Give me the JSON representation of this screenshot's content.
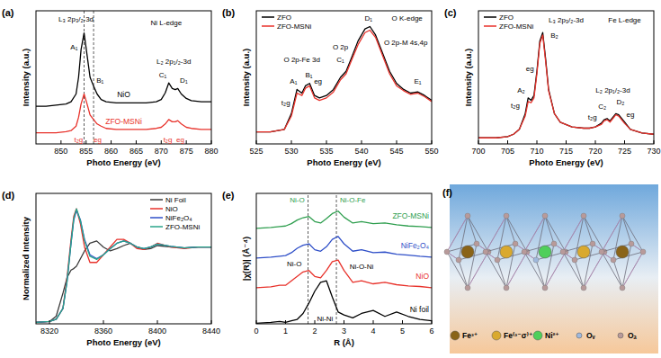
{
  "chart_data": [
    {
      "type": "line",
      "panel": "(a)",
      "x_label": "Photo Energy (eV)",
      "y_label": "Intensity (a.u.)",
      "xlim": [
        845,
        880
      ],
      "xticks": [
        850,
        855,
        860,
        865,
        870,
        875,
        880
      ],
      "ylim": [
        0,
        1.2
      ],
      "tick_labels": "x",
      "legend": "center",
      "x": [
        845,
        847,
        849,
        851,
        852,
        853,
        853.5,
        854,
        854.6,
        855.2,
        855.8,
        856.5,
        857.2,
        858,
        859,
        861,
        863,
        865,
        867,
        869,
        870,
        870.8,
        871.5,
        872.2,
        872.8,
        873.3,
        874,
        875,
        876,
        878,
        880
      ],
      "series": [
        {
          "name": "NiO",
          "color": "#000000",
          "values": [
            0.34,
            0.34,
            0.35,
            0.36,
            0.38,
            0.45,
            0.6,
            0.85,
            1.0,
            0.8,
            0.6,
            0.52,
            0.45,
            0.4,
            0.38,
            0.37,
            0.37,
            0.37,
            0.37,
            0.38,
            0.4,
            0.46,
            0.55,
            0.5,
            0.49,
            0.5,
            0.45,
            0.41,
            0.39,
            0.38,
            0.38
          ]
        },
        {
          "name": "ZFO-MSNi",
          "color": "#e8322b",
          "values": [
            0.1,
            0.1,
            0.1,
            0.11,
            0.12,
            0.16,
            0.24,
            0.36,
            0.45,
            0.36,
            0.26,
            0.22,
            0.18,
            0.16,
            0.14,
            0.13,
            0.13,
            0.13,
            0.13,
            0.14,
            0.15,
            0.18,
            0.22,
            0.2,
            0.2,
            0.21,
            0.18,
            0.15,
            0.14,
            0.13,
            0.13
          ]
        }
      ],
      "reference_lines": [
        854.6,
        856.5
      ],
      "annotations": [
        {
          "text": "Ni L-edge",
          "x": 871,
          "y": 1.07
        },
        {
          "text": "L₃ 2p₃/₂-3d",
          "x": 853,
          "y": 1.1
        },
        {
          "text": "A₁",
          "x": 852.6,
          "y": 0.85
        },
        {
          "text": "B₁",
          "x": 857.8,
          "y": 0.55
        },
        {
          "text": "L₂ 2p₁/₂-3d",
          "x": 872.5,
          "y": 0.72
        },
        {
          "text": "C₁",
          "x": 870.3,
          "y": 0.6
        },
        {
          "text": "D₁",
          "x": 874.5,
          "y": 0.55
        },
        {
          "text": "t₂g",
          "x": 853.5,
          "y": 0.02,
          "color": "#e8322b"
        },
        {
          "text": "eg",
          "x": 857.3,
          "y": 0.02,
          "color": "#e8322b"
        },
        {
          "text": "t₂g",
          "x": 871.3,
          "y": 0.02,
          "color": "#e8322b"
        },
        {
          "text": "eg",
          "x": 873.8,
          "y": 0.02,
          "color": "#e8322b"
        }
      ]
    },
    {
      "type": "line",
      "panel": "(b)",
      "x_label": "Photo Energy (eV)",
      "y_label": "Intensity (a.u.)",
      "xlim": [
        525,
        550
      ],
      "xticks": [
        525,
        530,
        535,
        540,
        545,
        550
      ],
      "ylim": [
        0,
        1.1
      ],
      "tick_labels": "x",
      "legend": "top-left",
      "x": [
        525,
        527,
        529,
        530,
        530.8,
        531.5,
        532,
        532.6,
        533.3,
        534,
        535,
        536,
        537,
        537.8,
        538.5,
        539.5,
        540.5,
        541.2,
        542,
        543,
        544,
        545,
        546,
        547,
        548,
        549,
        550
      ],
      "series": [
        {
          "name": "ZFO",
          "color": "#000000",
          "values": [
            0.1,
            0.1,
            0.12,
            0.25,
            0.45,
            0.42,
            0.48,
            0.5,
            0.4,
            0.38,
            0.4,
            0.45,
            0.55,
            0.6,
            0.7,
            0.85,
            0.95,
            0.97,
            0.9,
            0.75,
            0.6,
            0.5,
            0.45,
            0.42,
            0.43,
            0.4,
            0.36
          ]
        },
        {
          "name": "ZFO-MSNi",
          "color": "#e8322b",
          "values": [
            0.1,
            0.1,
            0.12,
            0.23,
            0.42,
            0.4,
            0.46,
            0.48,
            0.38,
            0.36,
            0.38,
            0.43,
            0.53,
            0.58,
            0.68,
            0.82,
            0.92,
            0.94,
            0.88,
            0.73,
            0.58,
            0.48,
            0.44,
            0.41,
            0.42,
            0.39,
            0.35
          ]
        }
      ],
      "annotations": [
        {
          "text": "O K-edge",
          "x": 546.5,
          "y": 1.02
        },
        {
          "text": "O 2p-Fe 3d",
          "x": 531.5,
          "y": 0.68
        },
        {
          "text": "A₁",
          "x": 530.3,
          "y": 0.5
        },
        {
          "text": "B₁",
          "x": 532.5,
          "y": 0.55
        },
        {
          "text": "t₂g",
          "x": 529.2,
          "y": 0.32
        },
        {
          "text": "eg",
          "x": 533.8,
          "y": 0.5
        },
        {
          "text": "O 2p",
          "x": 537,
          "y": 0.78
        },
        {
          "text": "C₁",
          "x": 537,
          "y": 0.68
        },
        {
          "text": "D₁",
          "x": 541,
          "y": 1.02
        },
        {
          "text": "O 2p-M 4s,4p",
          "x": 546.3,
          "y": 0.82
        },
        {
          "text": "E₁",
          "x": 548,
          "y": 0.5
        }
      ]
    },
    {
      "type": "line",
      "panel": "(c)",
      "x_label": "Photo Energy (eV)",
      "y_label": "Intensity (a.u.)",
      "xlim": [
        700,
        730
      ],
      "xticks": [
        700,
        705,
        710,
        715,
        720,
        725,
        730
      ],
      "ylim": [
        0,
        1.1
      ],
      "tick_labels": "x",
      "legend": "top-left",
      "x": [
        700,
        703,
        705,
        706,
        707,
        708,
        708.5,
        709,
        709.5,
        710,
        710.5,
        711,
        711.5,
        712,
        713,
        714,
        716,
        718,
        719,
        720,
        721,
        721.5,
        722,
        722.5,
        723,
        723.5,
        724,
        725,
        726,
        728,
        730
      ],
      "series": [
        {
          "name": "ZFO",
          "color": "#000000",
          "values": [
            0.05,
            0.05,
            0.06,
            0.08,
            0.12,
            0.25,
            0.38,
            0.36,
            0.4,
            0.6,
            0.85,
            0.92,
            0.7,
            0.45,
            0.25,
            0.18,
            0.14,
            0.13,
            0.13,
            0.14,
            0.17,
            0.2,
            0.21,
            0.19,
            0.22,
            0.25,
            0.24,
            0.18,
            0.12,
            0.09,
            0.08
          ]
        },
        {
          "name": "ZFO-MSNi",
          "color": "#e8322b",
          "values": [
            0.05,
            0.05,
            0.06,
            0.08,
            0.12,
            0.23,
            0.35,
            0.34,
            0.38,
            0.58,
            0.83,
            0.9,
            0.68,
            0.44,
            0.25,
            0.18,
            0.14,
            0.13,
            0.13,
            0.14,
            0.16,
            0.19,
            0.2,
            0.18,
            0.21,
            0.24,
            0.23,
            0.17,
            0.12,
            0.09,
            0.08
          ]
        }
      ],
      "annotations": [
        {
          "text": "Fe L-edge",
          "x": 725,
          "y": 1.0
        },
        {
          "text": "L₃ 2p₃/₂-3d",
          "x": 715,
          "y": 1.0
        },
        {
          "text": "A₂",
          "x": 707.3,
          "y": 0.42
        },
        {
          "text": "B₂",
          "x": 713,
          "y": 0.88
        },
        {
          "text": "t₂g",
          "x": 706.3,
          "y": 0.3
        },
        {
          "text": "eg",
          "x": 708.8,
          "y": 0.6
        },
        {
          "text": "L₂ 2p₁/₂-3d",
          "x": 723,
          "y": 0.42
        },
        {
          "text": "C₂",
          "x": 721.2,
          "y": 0.29
        },
        {
          "text": "D₂",
          "x": 724.3,
          "y": 0.33
        },
        {
          "text": "t₂g",
          "x": 719.5,
          "y": 0.2
        },
        {
          "text": "eg",
          "x": 726,
          "y": 0.22
        }
      ]
    },
    {
      "type": "line",
      "panel": "(d)",
      "x_label": "Photo Energy (eV)",
      "y_label": "Normalized Intensity",
      "xlim": [
        8310,
        8440
      ],
      "xticks": [
        8320,
        8360,
        8400,
        8440
      ],
      "ylim": [
        0,
        1.7
      ],
      "tick_labels": "x",
      "legend": "top-right",
      "x": [
        8310,
        8320,
        8325,
        8330,
        8333,
        8336,
        8338,
        8340,
        8343,
        8346,
        8350,
        8355,
        8360,
        8365,
        8370,
        8375,
        8380,
        8385,
        8390,
        8395,
        8400,
        8410,
        8420,
        8430,
        8440
      ],
      "series": [
        {
          "name": "Ni Foil",
          "color": "#3a3a3a",
          "values": [
            0.02,
            0.03,
            0.1,
            0.4,
            0.6,
            0.7,
            0.72,
            0.75,
            0.85,
            0.95,
            1.05,
            1.08,
            1.0,
            0.95,
            0.98,
            1.02,
            1.05,
            1.0,
            0.97,
            0.98,
            1.02,
            1.0,
            0.99,
            1.0,
            1.0
          ]
        },
        {
          "name": "NiO",
          "color": "#e8322b",
          "values": [
            0.02,
            0.03,
            0.06,
            0.2,
            0.6,
            1.1,
            1.4,
            1.5,
            1.3,
            1.0,
            0.8,
            0.8,
            0.9,
            1.0,
            1.1,
            1.1,
            1.05,
            0.98,
            0.97,
            1.0,
            1.05,
            1.0,
            0.98,
            1.0,
            1.0
          ]
        },
        {
          "name": "NiFe₂O₄",
          "color": "#2f4fc8",
          "values": [
            0.02,
            0.03,
            0.06,
            0.2,
            0.55,
            1.05,
            1.35,
            1.48,
            1.35,
            1.1,
            0.9,
            0.85,
            0.9,
            0.98,
            1.05,
            1.08,
            1.05,
            1.0,
            0.98,
            1.0,
            1.04,
            1.01,
            0.99,
            1.0,
            1.0
          ]
        },
        {
          "name": "ZFO-MSNi",
          "color": "#2aa58a",
          "values": [
            0.02,
            0.03,
            0.06,
            0.2,
            0.55,
            1.05,
            1.37,
            1.5,
            1.34,
            1.08,
            0.88,
            0.84,
            0.9,
            0.98,
            1.05,
            1.08,
            1.05,
            1.0,
            0.98,
            1.0,
            1.04,
            1.01,
            0.99,
            1.0,
            1.0
          ]
        }
      ]
    },
    {
      "type": "line",
      "panel": "(e)",
      "x_label": "R (Å)",
      "y_label": "|χ(R)| (Å⁻⁴)",
      "xlim": [
        0,
        6
      ],
      "xticks": [
        0,
        1,
        2,
        3,
        4,
        5,
        6
      ],
      "ylim": [
        0,
        4.4
      ],
      "tick_labels": "x",
      "legend": "right",
      "x": [
        0,
        0.5,
        0.8,
        1.0,
        1.2,
        1.4,
        1.6,
        1.8,
        2.0,
        2.2,
        2.4,
        2.6,
        2.8,
        3.0,
        3.3,
        3.6,
        4.0,
        4.4,
        4.8,
        5.2,
        5.6,
        6.0
      ],
      "series": [
        {
          "name": "Ni foil",
          "color": "#000000",
          "values": [
            0.02,
            0.05,
            0.08,
            0.05,
            0.1,
            0.15,
            0.35,
            0.7,
            1.1,
            1.4,
            1.45,
            0.9,
            0.4,
            0.3,
            0.2,
            0.35,
            0.45,
            0.25,
            0.4,
            0.25,
            0.15,
            0.1
          ]
        },
        {
          "name": "NiO",
          "color": "#e8322b",
          "values": [
            1.22,
            1.25,
            1.3,
            1.3,
            1.45,
            1.6,
            1.75,
            1.8,
            1.6,
            1.55,
            1.8,
            2.1,
            2.15,
            1.8,
            1.4,
            1.45,
            1.35,
            1.4,
            1.32,
            1.28,
            1.26,
            1.22
          ]
        },
        {
          "name": "NiFe₂O₄",
          "color": "#2f4fc8",
          "values": [
            2.22,
            2.25,
            2.28,
            2.3,
            2.4,
            2.55,
            2.65,
            2.7,
            2.5,
            2.45,
            2.6,
            2.85,
            2.95,
            2.7,
            2.45,
            2.5,
            2.4,
            2.42,
            2.35,
            2.32,
            2.28,
            2.25
          ]
        },
        {
          "name": "ZFO-MSNi",
          "color": "#2e9e4e",
          "values": [
            3.22,
            3.25,
            3.28,
            3.3,
            3.38,
            3.5,
            3.58,
            3.62,
            3.45,
            3.4,
            3.55,
            3.72,
            3.8,
            3.6,
            3.4,
            3.45,
            3.38,
            3.4,
            3.34,
            3.3,
            3.28,
            3.25
          ]
        }
      ],
      "reference_lines": [
        1.77,
        2.74
      ],
      "annotations": [
        {
          "text": "Ni-O",
          "x": 1.4,
          "y": 4.1,
          "color": "#2e9e4e"
        },
        {
          "text": "Ni-O-Fe",
          "x": 3.3,
          "y": 4.1,
          "color": "#2e9e4e"
        },
        {
          "text": "Ni-O",
          "x": 1.3,
          "y": 1.95
        },
        {
          "text": "Ni-O-Ni",
          "x": 3.6,
          "y": 1.85
        },
        {
          "text": "Ni-Ni",
          "x": 2.35,
          "y": 0.08
        }
      ]
    }
  ],
  "diagram": {
    "panel": "(f)",
    "legend": [
      {
        "label": "Fe³⁺",
        "color": "#8a6418"
      },
      {
        "label": "Fe⁽³⁻σ⁾⁺",
        "color": "#d9a92e"
      },
      {
        "label": "Ni²⁺",
        "color": "#4fcf5a"
      },
      {
        "label": "Oᵥ",
        "color": "#9fb8dc"
      },
      {
        "label": "Oₐ",
        "color": "#b89a9a"
      }
    ]
  }
}
